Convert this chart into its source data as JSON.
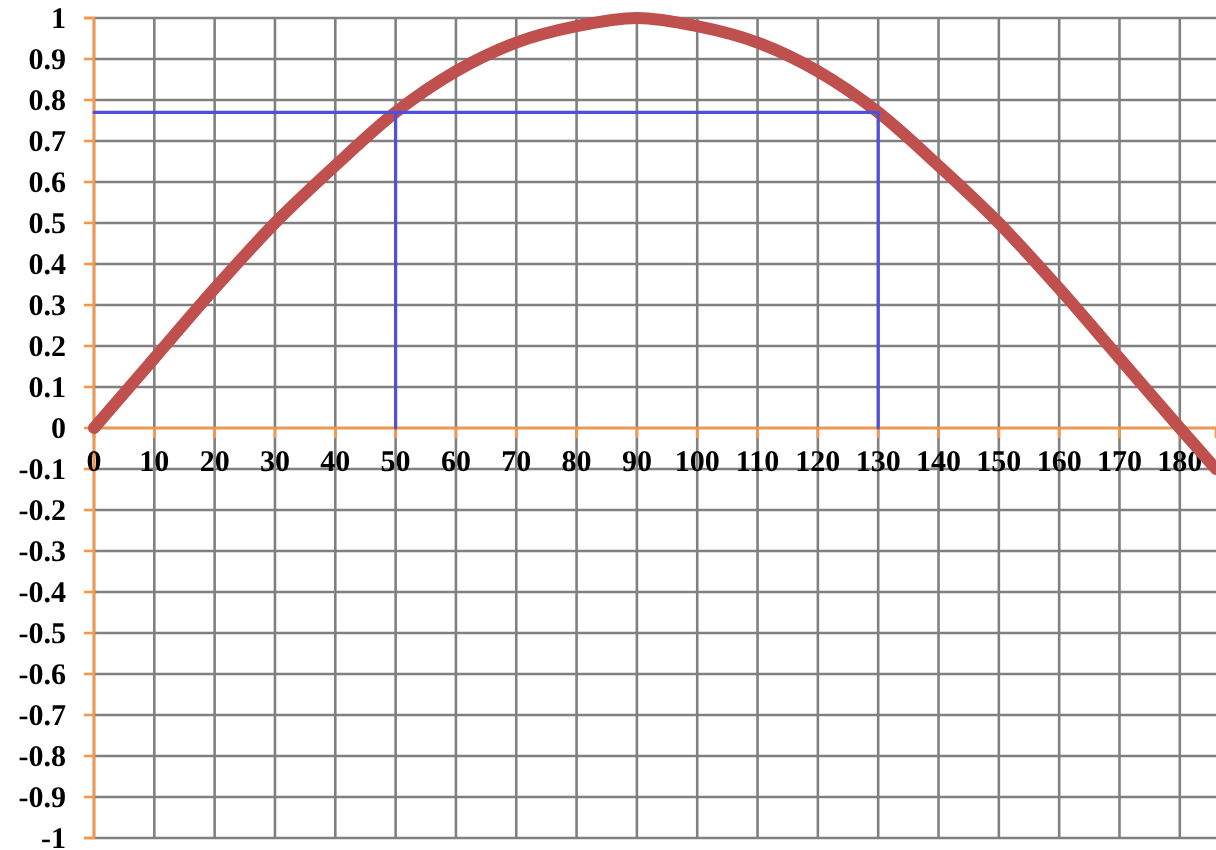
{
  "chart_data": {
    "type": "line",
    "xlim": [
      0,
      186
    ],
    "ylim": [
      -1,
      1
    ],
    "xticks": [
      0,
      10,
      20,
      30,
      40,
      50,
      60,
      70,
      80,
      90,
      100,
      110,
      120,
      130,
      140,
      150,
      160,
      170,
      180
    ],
    "yticks": [
      -1,
      -0.9,
      -0.8,
      -0.7,
      -0.6,
      -0.5,
      -0.4,
      -0.3,
      -0.2,
      -0.1,
      0,
      0.1,
      0.2,
      0.3,
      0.4,
      0.5,
      0.6,
      0.7,
      0.8,
      0.9,
      1
    ],
    "grid": true,
    "marker": "none",
    "line_style": "solid",
    "series": [
      {
        "color": "#c0504d",
        "x": [
          0,
          10,
          20,
          30,
          40,
          50,
          60,
          70,
          80,
          90,
          100,
          110,
          120,
          130,
          140,
          150,
          160,
          170,
          180,
          186
        ],
        "values": [
          0,
          0.17,
          0.34,
          0.5,
          0.64,
          0.77,
          0.87,
          0.94,
          0.98,
          1,
          0.98,
          0.94,
          0.87,
          0.77,
          0.64,
          0.5,
          0.34,
          0.17,
          0,
          -0.1
        ]
      },
      {
        "color": "#4f4fd9",
        "x": [
          50,
          50,
          0,
          130,
          130
        ],
        "values": [
          0,
          0.77,
          0.77,
          0.77,
          0
        ]
      }
    ]
  }
}
